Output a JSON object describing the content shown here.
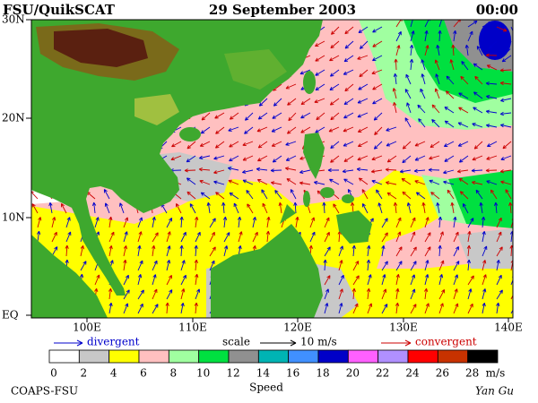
{
  "header": {
    "left": "FSU/QuikSCAT",
    "center": "29 September 2003",
    "right": "00:00"
  },
  "map": {
    "lat_labels": [
      "30N",
      "20N",
      "10N",
      "EQ"
    ],
    "lon_labels": [
      "100E",
      "110E",
      "120E",
      "130E",
      "140E"
    ]
  },
  "legend": {
    "divergent": "divergent",
    "divergent_color": "#0000cc",
    "scale": "scale",
    "scale_value": "10 m/s",
    "convergent": "convergent",
    "convergent_color": "#cc0000"
  },
  "colorbar": {
    "ticks": [
      0,
      2,
      4,
      6,
      8,
      10,
      12,
      14,
      16,
      18,
      20,
      22,
      24,
      26,
      28
    ],
    "unit": "m/s",
    "label": "Speed",
    "colors": [
      "#ffffff",
      "#c8c8c8",
      "#ffff00",
      "#ffc0c0",
      "#a0ffa0",
      "#00e040",
      "#909090",
      "#00b4b4",
      "#4090ff",
      "#0000c8",
      "#ff60ff",
      "#b090ff",
      "#ff0000",
      "#c83200",
      "#000000"
    ]
  },
  "footer": {
    "left": "COAPS-FSU",
    "right": "Yan Gu"
  }
}
